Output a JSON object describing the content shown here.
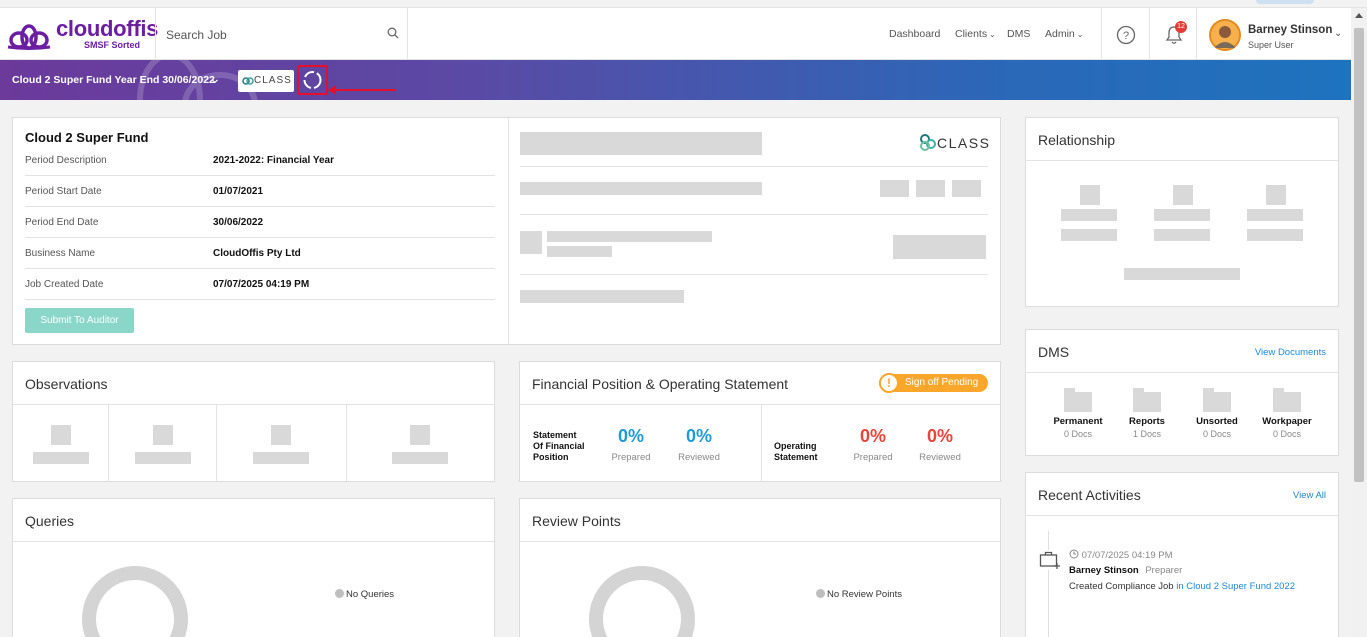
{
  "header": {
    "brand": "cloudoffis",
    "brand_sub": "SMSF Sorted",
    "search_placeholder": "Search Job",
    "nav": {
      "dashboard": "Dashboard",
      "clients": "Clients",
      "dms": "DMS",
      "admin": "Admin"
    },
    "notification_count": "12",
    "user": {
      "name": "Barney Stinson",
      "role": "Super User"
    }
  },
  "banner": {
    "title": "Cloud 2 Super Fund Year End 30/06/2022",
    "integration_logo": "CLASS"
  },
  "fund": {
    "name": "Cloud 2 Super Fund",
    "rows": [
      {
        "label": "Period Description",
        "value": "2021-2022: Financial Year"
      },
      {
        "label": "Period Start Date",
        "value": "01/07/2021"
      },
      {
        "label": "Period End Date",
        "value": "30/06/2022"
      },
      {
        "label": "Business Name",
        "value": "CloudOffis Pty Ltd"
      },
      {
        "label": "Job Created Date",
        "value": "07/07/2025 04:19 PM"
      }
    ],
    "submit_label": "Submit To Auditor",
    "class_logo": "CLASS"
  },
  "relationship": {
    "title": "Relationship"
  },
  "dms": {
    "title": "DMS",
    "link": "View Documents",
    "folders": [
      {
        "name": "Permanent",
        "count": "0 Docs"
      },
      {
        "name": "Reports",
        "count": "1 Docs"
      },
      {
        "name": "Unsorted",
        "count": "0 Docs"
      },
      {
        "name": "Workpaper",
        "count": "0 Docs"
      }
    ]
  },
  "observations": {
    "title": "Observations"
  },
  "financial": {
    "title": "Financial Position & Operating Statement",
    "signoff": "Sign off Pending",
    "sofp_label_1": "Statement",
    "sofp_label_2": "Of Financial",
    "sofp_label_3": "Position",
    "os_label_1": "Operating",
    "os_label_2": "Statement",
    "sofp_prepared": "0%",
    "sofp_reviewed": "0%",
    "os_prepared": "0%",
    "os_reviewed": "0%",
    "prepared_label": "Prepared",
    "reviewed_label": "Reviewed"
  },
  "recent": {
    "title": "Recent Activities",
    "link": "View All",
    "item": {
      "time": "07/07/2025 04:19 PM",
      "user": "Barney Stinson",
      "role": "Preparer",
      "action": "Created Compliance Job",
      "target": "in Cloud 2 Super Fund 2022"
    }
  },
  "queries": {
    "title": "Queries",
    "legend": "No Queries"
  },
  "review_points": {
    "title": "Review Points",
    "legend": "No Review Points"
  },
  "colors": {
    "brand": "#6c1ea3",
    "accent_blue": "#1e88d2",
    "status_red": "#e8443a",
    "warning": "#f8a72b",
    "submit": "#8ad7c9"
  }
}
